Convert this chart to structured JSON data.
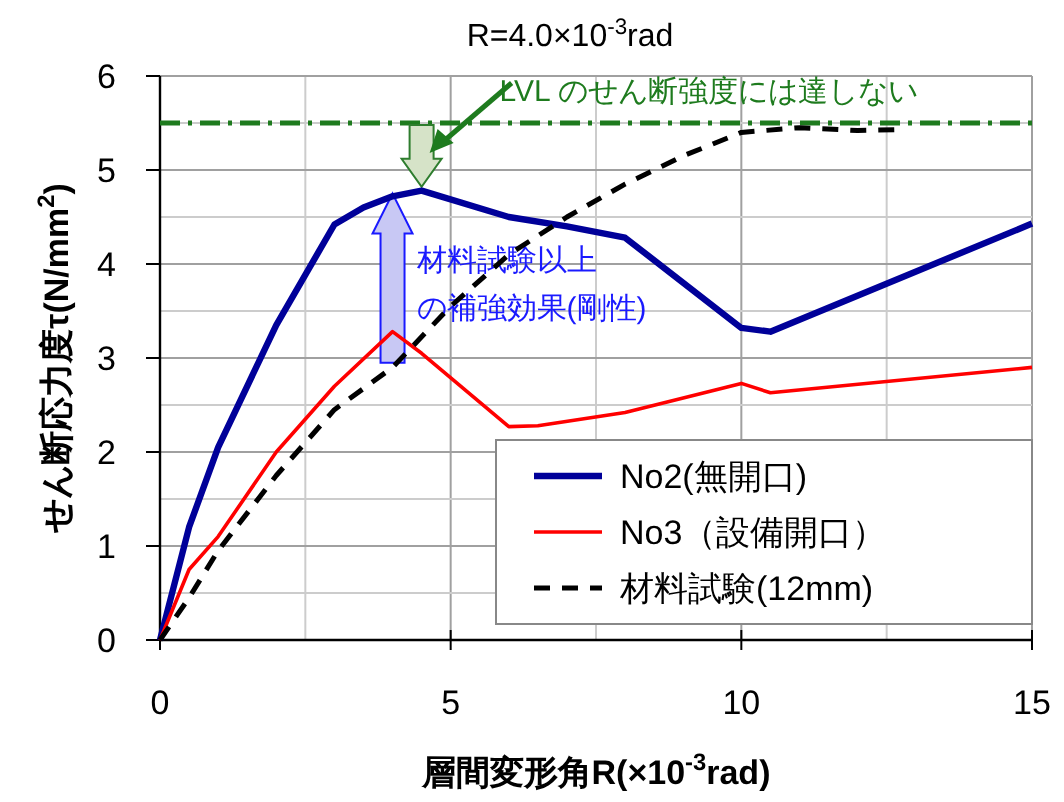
{
  "chart_data": {
    "type": "line",
    "title": "R=4.0×10$^{-3}$rad",
    "xlabel": "層間変形角R(×10$^{-3}$rad)",
    "ylabel": "せん断応力度τ(N/mm$^{2}$)",
    "xlim": [
      0,
      15
    ],
    "xticks": [
      0,
      5,
      10,
      15
    ],
    "ylim": [
      0,
      6
    ],
    "yticks": [
      0,
      1,
      2,
      3,
      4,
      5,
      6
    ],
    "grid": true,
    "legend": "bottom right",
    "marker": "none",
    "series": [
      {
        "name": "No2(無開口)",
        "color": "#000099",
        "line_style": "solid",
        "x": [
          0,
          0.5,
          1,
          2,
          3,
          3.5,
          4,
          4.5,
          6,
          7,
          8,
          10,
          10.5,
          15
        ],
        "values": [
          0,
          1.2,
          2.05,
          3.35,
          4.42,
          4.6,
          4.72,
          4.78,
          4.5,
          4.4,
          4.28,
          3.32,
          3.28,
          4.43
        ]
      },
      {
        "name": "No3（設備開口）",
        "color": "#ff0000",
        "line_style": "solid",
        "x": [
          0,
          0.5,
          1,
          2,
          3,
          4,
          4.5,
          6,
          6.5,
          8,
          10,
          10.5,
          15
        ],
        "values": [
          0,
          0.75,
          1.1,
          2.0,
          2.7,
          3.28,
          3.05,
          2.27,
          2.28,
          2.42,
          2.73,
          2.63,
          2.9
        ]
      },
      {
        "name": "材料試験(12mm)",
        "color": "#000000",
        "line_style": "dashed",
        "x": [
          0,
          0.5,
          1,
          2,
          3,
          4,
          5,
          6,
          7,
          8,
          9,
          10,
          11,
          12,
          12.7
        ],
        "values": [
          0,
          0.45,
          0.95,
          1.75,
          2.45,
          2.9,
          3.55,
          4.1,
          4.5,
          4.85,
          5.15,
          5.4,
          5.45,
          5.42,
          5.43
        ]
      }
    ],
    "ref_lines": [
      {
        "axis": "y",
        "value": 5.5,
        "color": "#1e7b1e",
        "line_style": "dashdot"
      }
    ],
    "annotations": [
      {
        "text": "LVL のせん断強度には達しない",
        "x": 4.5,
        "y": 5.5
      },
      {
        "text": "材料試験以上",
        "x": 4,
        "y": 4.75
      },
      "の補強効果(剛性)"
    ]
  }
}
